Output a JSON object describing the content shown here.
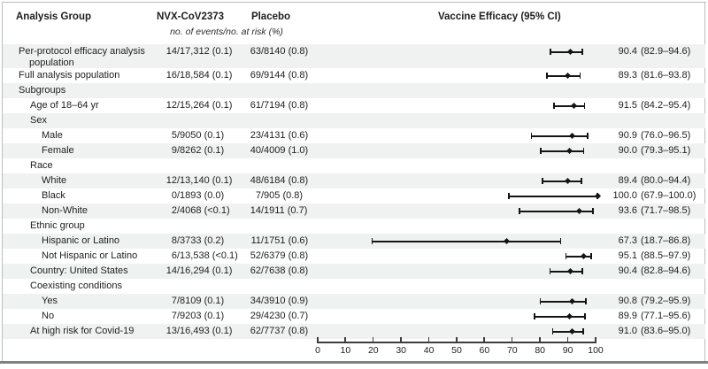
{
  "header": {
    "analysis_group": "Analysis Group",
    "nvx_label": "NVX-CoV2373",
    "placebo_label": "Placebo",
    "events_subheader": "no. of events/no. at risk (%)",
    "efficacy_label": "Vaccine Efficacy (95% CI)"
  },
  "colors": {
    "band": "#f0f2f1",
    "text": "#1d1d1d",
    "marker": "#141414",
    "axis": "#3c3c3c",
    "border_light": "#b9bdbd",
    "border_bottom": "#7d8282"
  },
  "chart_data": {
    "type": "forest",
    "title": "Vaccine Efficacy (95% CI)",
    "xlabel": "",
    "x_axis": {
      "min": 0,
      "max": 100,
      "ticks": [
        0,
        10,
        20,
        30,
        40,
        50,
        60,
        70,
        80,
        90,
        100
      ]
    },
    "columns": [
      "Analysis Group",
      "NVX-CoV2373 no. of events/no. at risk (%)",
      "Placebo no. of events/no. at risk (%)",
      "Vaccine Efficacy (95% CI)"
    ],
    "rows": [
      {
        "label": "Per-protocol efficacy analysis",
        "label2": "population",
        "indent": 0,
        "shaded": true,
        "nvx": "14/17,312 (0.1)",
        "placebo": "63/8140 (0.8)",
        "est": 90.4,
        "lo": 82.9,
        "hi": 94.6,
        "efficacy": "90.4 (82.9–94.6)"
      },
      {
        "label": "Full analysis population",
        "indent": 0,
        "shaded": false,
        "nvx": "16/18,584 (0.1)",
        "placebo": "69/9144 (0.8)",
        "est": 89.3,
        "lo": 81.6,
        "hi": 93.8,
        "efficacy": "89.3 (81.6–93.8)"
      },
      {
        "label": "Subgroups",
        "indent": 0,
        "shaded": true
      },
      {
        "label": "Age of 18–64 yr",
        "indent": 1,
        "shaded": false,
        "nvx": "12/15,264 (0.1)",
        "placebo": "61/7194 (0.8)",
        "est": 91.5,
        "lo": 84.2,
        "hi": 95.4,
        "efficacy": "91.5 (84.2–95.4)"
      },
      {
        "label": "Sex",
        "indent": 1,
        "shaded": true
      },
      {
        "label": "Male",
        "indent": 2,
        "shaded": false,
        "nvx": "5/9050 (0.1)",
        "placebo": "23/4131 (0.6)",
        "est": 90.9,
        "lo": 76.0,
        "hi": 96.5,
        "efficacy": "90.9 (76.0–96.5)"
      },
      {
        "label": "Female",
        "indent": 2,
        "shaded": true,
        "nvx": "9/8262 (0.1)",
        "placebo": "40/4009 (1.0)",
        "est": 90.0,
        "lo": 79.3,
        "hi": 95.1,
        "efficacy": "90.0 (79.3–95.1)"
      },
      {
        "label": "Race",
        "indent": 1,
        "shaded": false
      },
      {
        "label": "White",
        "indent": 2,
        "shaded": true,
        "nvx": "12/13,140 (0.1)",
        "placebo": "48/6184 (0.8)",
        "est": 89.4,
        "lo": 80.0,
        "hi": 94.4,
        "efficacy": "89.4 (80.0–94.4)"
      },
      {
        "label": "Black",
        "indent": 2,
        "shaded": false,
        "nvx": "0/1893 (0.0)",
        "placebo": "7/905 (0.8)",
        "est": 100.0,
        "lo": 67.9,
        "hi": 100.0,
        "efficacy": "100.0 (67.9–100.0)"
      },
      {
        "label": "Non-White",
        "indent": 2,
        "shaded": true,
        "nvx": "2/4068 (<0.1)",
        "placebo": "14/1911 (0.7)",
        "est": 93.6,
        "lo": 71.7,
        "hi": 98.5,
        "efficacy": "93.6 (71.7–98.5)"
      },
      {
        "label": "Ethnic group",
        "indent": 1,
        "shaded": false
      },
      {
        "label": "Hispanic or Latino",
        "indent": 2,
        "shaded": true,
        "nvx": "8/3733 (0.2)",
        "placebo": "11/1751 (0.6)",
        "est": 67.3,
        "lo": 18.7,
        "hi": 86.8,
        "efficacy": "67.3 (18.7–86.8)"
      },
      {
        "label": "Not Hispanic or Latino",
        "indent": 2,
        "shaded": false,
        "nvx": "6/13,538 (<0.1)",
        "placebo": "52/6379 (0.8)",
        "est": 95.1,
        "lo": 88.5,
        "hi": 97.9,
        "efficacy": "95.1 (88.5–97.9)"
      },
      {
        "label": "Country: United States",
        "indent": 1,
        "shaded": true,
        "nvx": "14/16,294 (0.1)",
        "placebo": "62/7638 (0.8)",
        "est": 90.4,
        "lo": 82.8,
        "hi": 94.6,
        "efficacy": "90.4 (82.8–94.6)"
      },
      {
        "label": "Coexisting conditions",
        "indent": 1,
        "shaded": false
      },
      {
        "label": "Yes",
        "indent": 2,
        "shaded": true,
        "nvx": "7/8109 (0.1)",
        "placebo": "34/3910 (0.9)",
        "est": 90.8,
        "lo": 79.2,
        "hi": 95.9,
        "efficacy": "90.8 (79.2–95.9)"
      },
      {
        "label": "No",
        "indent": 2,
        "shaded": false,
        "nvx": "7/9203 (0.1)",
        "placebo": "29/4230 (0.7)",
        "est": 89.9,
        "lo": 77.1,
        "hi": 95.6,
        "efficacy": "89.9 (77.1–95.6)"
      },
      {
        "label": "At high risk for Covid-19",
        "indent": 1,
        "shaded": true,
        "nvx": "13/16,493 (0.1)",
        "placebo": "62/7737 (0.8)",
        "est": 91.0,
        "lo": 83.6,
        "hi": 95.0,
        "efficacy": "91.0 (83.6–95.0)"
      }
    ]
  }
}
